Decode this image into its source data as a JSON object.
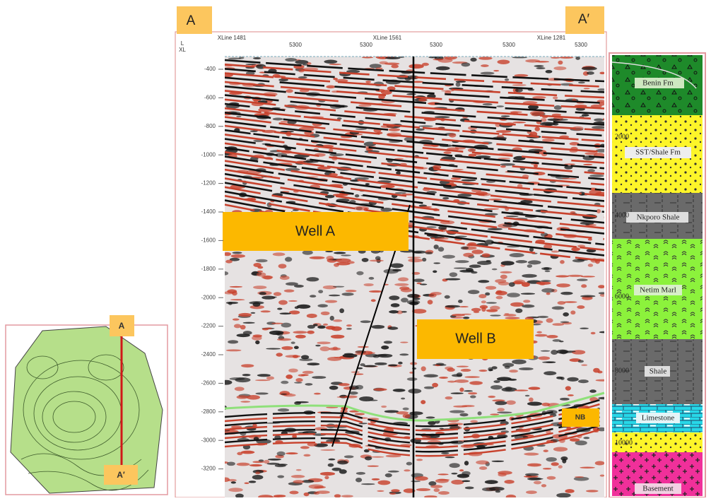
{
  "section": {
    "start_label": "A",
    "end_label": "A′",
    "top_axis": {
      "row_labels": [
        "L",
        "XL"
      ],
      "xlines": [
        "XLine 1481",
        "XLine 1561",
        "XLine 1281"
      ],
      "inlines": [
        "5300",
        "5300",
        "5300",
        "5300",
        "5300"
      ]
    },
    "depth_ticks": [
      "-400",
      "-600",
      "-800",
      "-1000",
      "-1200",
      "-1400",
      "-1600",
      "-1800",
      "-2000",
      "-2200",
      "-2400",
      "-2600",
      "-2800",
      "-3000",
      "-3200"
    ],
    "wells": [
      "Well A",
      "Well B"
    ],
    "horizon": "NB"
  },
  "map": {
    "start_label": "A",
    "end_label": "A′"
  },
  "column": {
    "layers": [
      "Benin Fm",
      "SST/Shale Fm",
      "Nkporo Shale",
      "Netim Marl",
      "Shale",
      "Limestone",
      "Basement"
    ],
    "depths": [
      "2000",
      "4000",
      "6000",
      "8000",
      "10000"
    ]
  }
}
